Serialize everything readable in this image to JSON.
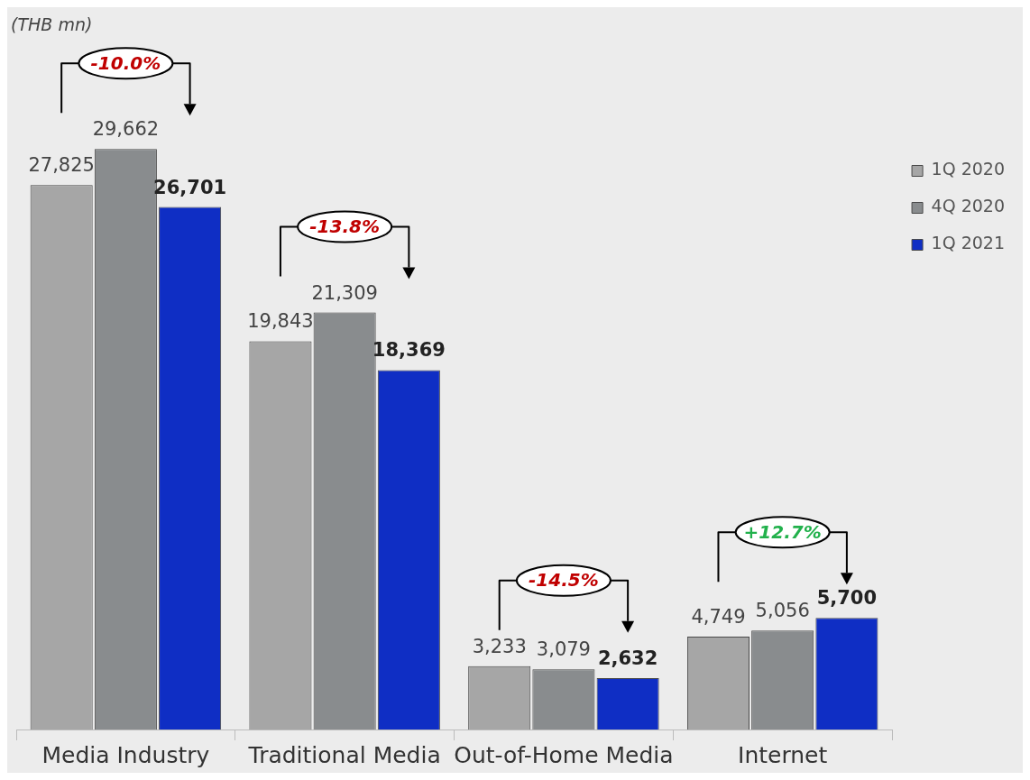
{
  "chart_data": {
    "type": "bar",
    "subtitle": "(THB mn)",
    "categories": [
      "Media Industry",
      "Traditional Media",
      "Out-of-Home Media",
      "Internet"
    ],
    "series": [
      {
        "name": "1Q 2020",
        "color": "#a6a6a6",
        "values": [
          27825,
          19843,
          3233,
          4749
        ],
        "value_labels": [
          "27,825",
          "19,843",
          "3,233",
          "4,749"
        ]
      },
      {
        "name": "4Q 2020",
        "color": "#898c8e",
        "values": [
          29662,
          21309,
          3079,
          5056
        ],
        "value_labels": [
          "29,662",
          "21,309",
          "3,079",
          "5,056"
        ]
      },
      {
        "name": "1Q 2021",
        "color": "#0f2ec4",
        "values": [
          26701,
          18369,
          2632,
          5700
        ],
        "value_labels": [
          "26,701",
          "18,369",
          "2,632",
          "5,700"
        ]
      }
    ],
    "legend": "top right",
    "annotations": [
      "-10.0%",
      "-13.8%",
      "-14.5%",
      "+12.7%"
    ]
  }
}
